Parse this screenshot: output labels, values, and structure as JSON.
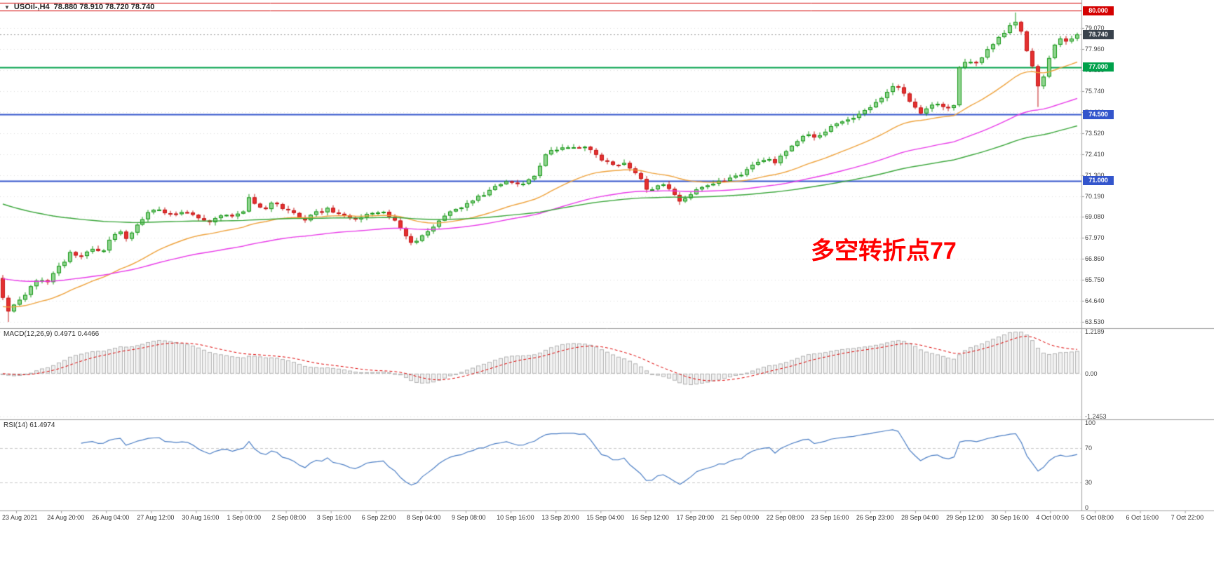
{
  "header": {
    "dropdown_icon": "▼",
    "symbol": "USOil-,H4",
    "ohlc_text": "78.880 78.910 78.720 78.740"
  },
  "annotation": {
    "text": "多空转折点77",
    "color": "#ff0000"
  },
  "panels": {
    "macd": {
      "label": "MACD(12,26,9) 0.4971 0.4466",
      "axis_labels": [
        "1.2189",
        "0.00",
        "-1.2453"
      ],
      "axis_values": [
        1.2189,
        0,
        -1.2453
      ]
    },
    "rsi": {
      "label": "RSI(14) 61.4974",
      "axis_labels": [
        "100",
        "70",
        "30",
        "0"
      ],
      "axis_values": [
        100,
        70,
        30,
        0
      ]
    }
  },
  "price_scale": {
    "labels": [
      "79.070",
      "77.960",
      "76.850",
      "75.740",
      "74.630",
      "73.520",
      "72.410",
      "71.300",
      "70.190",
      "69.080",
      "67.970",
      "66.860",
      "65.750",
      "64.640",
      "63.530"
    ]
  },
  "levels": [
    {
      "label": "80.000",
      "price": 80.0,
      "color": "#d40000",
      "width": 1
    },
    {
      "label": "77.000",
      "price": 77.0,
      "color": "#00a14b",
      "width": 2
    },
    {
      "label": "74.500",
      "price": 74.5,
      "color": "#3355cc",
      "width": 2
    },
    {
      "label": "71.000",
      "price": 71.0,
      "color": "#3355cc",
      "width": 2
    }
  ],
  "top_line": {
    "price": 80.43,
    "color": "#d40000",
    "width": 1
  },
  "current_price": {
    "label": "78.740",
    "value": 78.74,
    "tag_bg": "#39424c"
  },
  "time_axis": {
    "labels": [
      "23 Aug 2021",
      "24 Aug 20:00",
      "26 Aug 04:00",
      "27 Aug 12:00",
      "30 Aug 16:00",
      "1 Sep 00:00",
      "2 Sep 08:00",
      "3 Sep 16:00",
      "6 Sep 22:00",
      "8 Sep 04:00",
      "9 Sep 08:00",
      "10 Sep 16:00",
      "13 Sep 20:00",
      "15 Sep 04:00",
      "16 Sep 12:00",
      "17 Sep 20:00",
      "21 Sep 00:00",
      "22 Sep 08:00",
      "23 Sep 16:00",
      "26 Sep 23:00",
      "28 Sep 04:00",
      "29 Sep 12:00",
      "30 Sep 16:00",
      "4 Oct 00:00",
      "5 Oct 08:00",
      "6 Oct 16:00",
      "7 Oct 22:00"
    ]
  },
  "colors": {
    "background": "#ffffff",
    "grid": "#dedede",
    "separator": "#9e9e9e",
    "axis_text": "#444444",
    "up_fill": "#8fd48f",
    "up_stroke": "#149614",
    "down_fill": "#e53030",
    "down_stroke": "#c41919",
    "macd_hist_fill": "#f1f1f1",
    "macd_hist_stroke": "#b4b4b4",
    "macd_signal": "#dd0000",
    "rsi_line": "#4a7dc4",
    "rsi_level": "#c9c9c9",
    "current_price_line": "#9a9a9a"
  },
  "chart_data": {
    "type": "candlestick",
    "symbol": "USOil",
    "timeframe": "H4",
    "current_ohlc": {
      "open": 78.88,
      "high": 78.91,
      "low": 78.72,
      "close": 78.74
    },
    "y_range": [
      63.2,
      80.56
    ],
    "num_candles": 193,
    "price_path_keypoints": [
      [
        0,
        65.8
      ],
      [
        8,
        63.95
      ],
      [
        20,
        64.4
      ],
      [
        38,
        65.1
      ],
      [
        55,
        65.9
      ],
      [
        66,
        65.5
      ],
      [
        78,
        66.3
      ],
      [
        90,
        66.6
      ],
      [
        102,
        67.3
      ],
      [
        114,
        66.9
      ],
      [
        132,
        67.45
      ],
      [
        144,
        67.1
      ],
      [
        156,
        67.85
      ],
      [
        168,
        68.35
      ],
      [
        180,
        67.95
      ],
      [
        198,
        68.8
      ],
      [
        210,
        69.3
      ],
      [
        228,
        69.5
      ],
      [
        246,
        69.15
      ],
      [
        264,
        69.45
      ],
      [
        282,
        69.05
      ],
      [
        300,
        68.85
      ],
      [
        318,
        69.25
      ],
      [
        336,
        69.15
      ],
      [
        348,
        69.4
      ],
      [
        356,
        70.15
      ],
      [
        364,
        69.8
      ],
      [
        378,
        69.5
      ],
      [
        390,
        69.9
      ],
      [
        402,
        69.6
      ],
      [
        420,
        69.3
      ],
      [
        432,
        68.9
      ],
      [
        450,
        69.3
      ],
      [
        468,
        69.5
      ],
      [
        486,
        69.2
      ],
      [
        504,
        68.9
      ],
      [
        522,
        69.25
      ],
      [
        540,
        69.4
      ],
      [
        558,
        69.1
      ],
      [
        570,
        68.5
      ],
      [
        588,
        67.65
      ],
      [
        600,
        67.95
      ],
      [
        618,
        68.6
      ],
      [
        636,
        69.2
      ],
      [
        654,
        69.5
      ],
      [
        672,
        69.9
      ],
      [
        690,
        70.3
      ],
      [
        708,
        70.75
      ],
      [
        726,
        71.0
      ],
      [
        744,
        70.85
      ],
      [
        756,
        71.15
      ],
      [
        768,
        71.5
      ],
      [
        775,
        72.3
      ],
      [
        786,
        72.6
      ],
      [
        804,
        72.85
      ],
      [
        822,
        72.65
      ],
      [
        834,
        72.85
      ],
      [
        846,
        72.4
      ],
      [
        858,
        72.1
      ],
      [
        876,
        71.8
      ],
      [
        888,
        72.0
      ],
      [
        900,
        71.6
      ],
      [
        912,
        71.15
      ],
      [
        924,
        70.45
      ],
      [
        936,
        70.7
      ],
      [
        948,
        70.9
      ],
      [
        960,
        70.3
      ],
      [
        972,
        69.85
      ],
      [
        984,
        70.2
      ],
      [
        996,
        70.6
      ],
      [
        1014,
        70.9
      ],
      [
        1032,
        71.0
      ],
      [
        1050,
        71.2
      ],
      [
        1068,
        71.6
      ],
      [
        1080,
        72.0
      ],
      [
        1092,
        72.2
      ],
      [
        1104,
        71.9
      ],
      [
        1116,
        72.45
      ],
      [
        1128,
        72.9
      ],
      [
        1140,
        73.2
      ],
      [
        1152,
        73.5
      ],
      [
        1164,
        73.3
      ],
      [
        1176,
        73.6
      ],
      [
        1188,
        73.9
      ],
      [
        1206,
        74.2
      ],
      [
        1224,
        74.45
      ],
      [
        1242,
        74.9
      ],
      [
        1260,
        75.5
      ],
      [
        1272,
        75.9
      ],
      [
        1278,
        76.1
      ],
      [
        1290,
        75.5
      ],
      [
        1302,
        74.85
      ],
      [
        1314,
        74.6
      ],
      [
        1326,
        74.9
      ],
      [
        1338,
        75.15
      ],
      [
        1350,
        74.7
      ],
      [
        1362,
        75.1
      ],
      [
        1368,
        77.0
      ],
      [
        1380,
        77.4
      ],
      [
        1392,
        77.2
      ],
      [
        1404,
        77.7
      ],
      [
        1416,
        78.2
      ],
      [
        1428,
        78.7
      ],
      [
        1440,
        79.2
      ],
      [
        1446,
        79.5
      ],
      [
        1452,
        79.15
      ],
      [
        1458,
        78.8
      ],
      [
        1464,
        77.9
      ],
      [
        1470,
        77.2
      ],
      [
        1476,
        76.7
      ],
      [
        1482,
        75.7
      ],
      [
        1488,
        76.5
      ],
      [
        1494,
        77.3
      ],
      [
        1500,
        78.0
      ],
      [
        1512,
        78.45
      ],
      [
        1524,
        78.3
      ],
      [
        1536,
        78.74
      ]
    ],
    "forced_extremes": [
      [
        8,
        "low",
        63.53
      ],
      [
        1446,
        "high",
        79.9
      ],
      [
        1482,
        "low",
        74.9
      ]
    ],
    "horizontal_levels": [
      80.0,
      77.0,
      74.5,
      71.0
    ],
    "moving_averages": [
      {
        "name": "fast-ma",
        "color": "#eea23c",
        "period": 28,
        "init": 64.3
      },
      {
        "name": "mid-ma",
        "color": "#e83ae8",
        "period": 70,
        "init": 65.85
      },
      {
        "name": "slow-ma",
        "color": "#3aa63a",
        "period": 120,
        "init": 69.85
      }
    ],
    "macd": {
      "fast": 12,
      "slow": 26,
      "signal": 9,
      "current_macd": 0.4971,
      "current_signal": 0.4466,
      "scale_max": 1.2189,
      "scale_min": -1.2453
    },
    "rsi": {
      "period": 14,
      "current": 61.4974,
      "levels": [
        70,
        30
      ],
      "scale": [
        0,
        100
      ]
    }
  }
}
